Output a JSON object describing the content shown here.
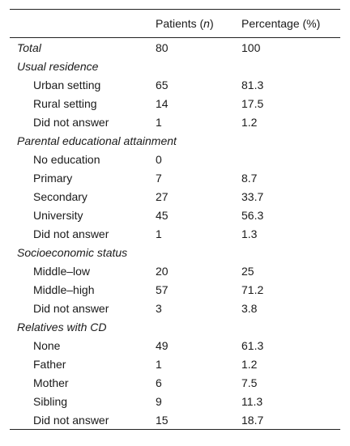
{
  "header": {
    "col1": "",
    "col2_prefix": "Patients (",
    "col2_var": "n",
    "col2_suffix": ")",
    "col3": "Percentage (%)"
  },
  "total": {
    "label": "Total",
    "n": "80",
    "pct": "100"
  },
  "sections": [
    {
      "title": "Usual residence",
      "rows": [
        {
          "label": "Urban setting",
          "n": "65",
          "pct": "81.3"
        },
        {
          "label": "Rural setting",
          "n": "14",
          "pct": "17.5"
        },
        {
          "label": "Did not answer",
          "n": "1",
          "pct": "1.2"
        }
      ]
    },
    {
      "title": "Parental educational attainment",
      "rows": [
        {
          "label": "No education",
          "n": "0",
          "pct": ""
        },
        {
          "label": "Primary",
          "n": "7",
          "pct": "8.7"
        },
        {
          "label": "Secondary",
          "n": "27",
          "pct": "33.7"
        },
        {
          "label": "University",
          "n": "45",
          "pct": "56.3"
        },
        {
          "label": "Did not answer",
          "n": "1",
          "pct": "1.3"
        }
      ]
    },
    {
      "title": "Socioeconomic status",
      "rows": [
        {
          "label": "Middle–low",
          "n": "20",
          "pct": "25"
        },
        {
          "label": "Middle–high",
          "n": "57",
          "pct": "71.2"
        },
        {
          "label": "Did not answer",
          "n": "3",
          "pct": "3.8"
        }
      ]
    },
    {
      "title": "Relatives with CD",
      "rows": [
        {
          "label": "None",
          "n": "49",
          "pct": "61.3"
        },
        {
          "label": "Father",
          "n": "1",
          "pct": "1.2"
        },
        {
          "label": "Mother",
          "n": "6",
          "pct": "7.5"
        },
        {
          "label": "Sibling",
          "n": "9",
          "pct": "11.3"
        },
        {
          "label": "Did not answer",
          "n": "15",
          "pct": "18.7"
        }
      ]
    }
  ]
}
